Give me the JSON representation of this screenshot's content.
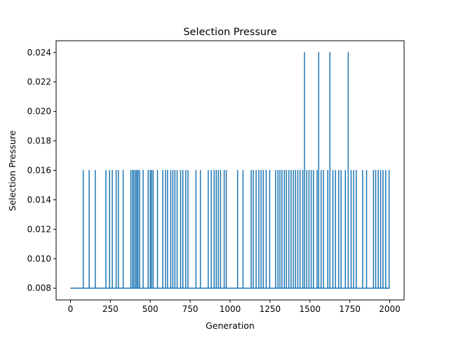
{
  "chart_data": {
    "type": "line",
    "title": "Selection Pressure",
    "xlabel": "Generation",
    "ylabel": "Selection Pressure",
    "xlim": [
      -90,
      2090
    ],
    "ylim": [
      0.0072,
      0.0248
    ],
    "xticks": [
      0,
      250,
      500,
      750,
      1000,
      1250,
      1500,
      1750,
      2000
    ],
    "xtick_labels": [
      "0",
      "250",
      "500",
      "750",
      "1000",
      "1250",
      "1500",
      "1750",
      "2000"
    ],
    "yticks": [
      0.008,
      0.01,
      0.012,
      0.014,
      0.016,
      0.018,
      0.02,
      0.022,
      0.024
    ],
    "ytick_labels": [
      "0.008",
      "0.010",
      "0.012",
      "0.014",
      "0.016",
      "0.018",
      "0.020",
      "0.022",
      "0.024"
    ],
    "grid": false,
    "line_color": "#1f77b4",
    "series": [
      {
        "baseline": 0.008,
        "x_range": [
          0,
          2000
        ],
        "spikes": [
          [
            80,
            0.016
          ],
          [
            117,
            0.016
          ],
          [
            155,
            0.016
          ],
          [
            222,
            0.016
          ],
          [
            245,
            0.016
          ],
          [
            262,
            0.016
          ],
          [
            286,
            0.016
          ],
          [
            300,
            0.016
          ],
          [
            330,
            0.016
          ],
          [
            378,
            0.016
          ],
          [
            388,
            0.016
          ],
          [
            397,
            0.016
          ],
          [
            407,
            0.016
          ],
          [
            415,
            0.016
          ],
          [
            423,
            0.016
          ],
          [
            433,
            0.016
          ],
          [
            455,
            0.016
          ],
          [
            487,
            0.016
          ],
          [
            500,
            0.016
          ],
          [
            508,
            0.016
          ],
          [
            518,
            0.016
          ],
          [
            545,
            0.016
          ],
          [
            578,
            0.016
          ],
          [
            595,
            0.016
          ],
          [
            608,
            0.016
          ],
          [
            628,
            0.016
          ],
          [
            641,
            0.016
          ],
          [
            654,
            0.016
          ],
          [
            668,
            0.016
          ],
          [
            690,
            0.016
          ],
          [
            704,
            0.016
          ],
          [
            722,
            0.016
          ],
          [
            736,
            0.016
          ],
          [
            786,
            0.016
          ],
          [
            814,
            0.016
          ],
          [
            863,
            0.016
          ],
          [
            882,
            0.016
          ],
          [
            900,
            0.016
          ],
          [
            913,
            0.016
          ],
          [
            926,
            0.016
          ],
          [
            940,
            0.016
          ],
          [
            963,
            0.016
          ],
          [
            976,
            0.016
          ],
          [
            1047,
            0.016
          ],
          [
            1081,
            0.016
          ],
          [
            1132,
            0.016
          ],
          [
            1145,
            0.016
          ],
          [
            1163,
            0.016
          ],
          [
            1180,
            0.016
          ],
          [
            1194,
            0.016
          ],
          [
            1208,
            0.016
          ],
          [
            1226,
            0.016
          ],
          [
            1248,
            0.016
          ],
          [
            1285,
            0.016
          ],
          [
            1300,
            0.016
          ],
          [
            1312,
            0.016
          ],
          [
            1325,
            0.016
          ],
          [
            1340,
            0.016
          ],
          [
            1353,
            0.016
          ],
          [
            1368,
            0.016
          ],
          [
            1382,
            0.016
          ],
          [
            1396,
            0.016
          ],
          [
            1410,
            0.016
          ],
          [
            1424,
            0.016
          ],
          [
            1438,
            0.016
          ],
          [
            1455,
            0.016
          ],
          [
            1466,
            0.024
          ],
          [
            1480,
            0.016
          ],
          [
            1494,
            0.016
          ],
          [
            1508,
            0.016
          ],
          [
            1522,
            0.016
          ],
          [
            1545,
            0.016
          ],
          [
            1555,
            0.024
          ],
          [
            1570,
            0.016
          ],
          [
            1585,
            0.016
          ],
          [
            1612,
            0.016
          ],
          [
            1625,
            0.024
          ],
          [
            1644,
            0.016
          ],
          [
            1660,
            0.016
          ],
          [
            1680,
            0.016
          ],
          [
            1695,
            0.016
          ],
          [
            1722,
            0.016
          ],
          [
            1740,
            0.024
          ],
          [
            1758,
            0.016
          ],
          [
            1774,
            0.016
          ],
          [
            1790,
            0.016
          ],
          [
            1830,
            0.016
          ],
          [
            1855,
            0.016
          ],
          [
            1898,
            0.016
          ],
          [
            1912,
            0.016
          ],
          [
            1928,
            0.016
          ],
          [
            1943,
            0.016
          ],
          [
            1958,
            0.016
          ],
          [
            1975,
            0.016
          ],
          [
            1996,
            0.016
          ]
        ]
      }
    ]
  }
}
